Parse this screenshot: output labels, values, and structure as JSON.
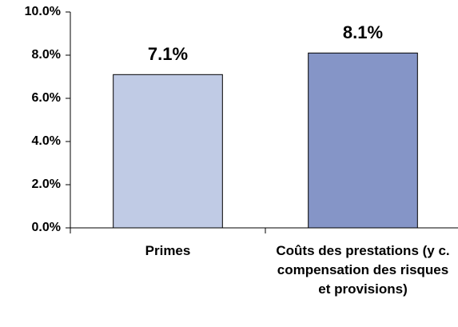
{
  "chart_data": {
    "type": "bar",
    "categories": [
      "Primes",
      "Coûts des prestations (y c. compensation des risques et provisions)"
    ],
    "values": [
      7.1,
      8.1
    ],
    "value_labels": [
      "7.1%",
      "8.1%"
    ],
    "colors": [
      "#c0cbe5",
      "#8595c7"
    ],
    "ylim": [
      0,
      10
    ],
    "yticks": [
      {
        "value": 0,
        "label": "0.0%"
      },
      {
        "value": 2,
        "label": "2.0%"
      },
      {
        "value": 4,
        "label": "4.0%"
      },
      {
        "value": 6,
        "label": "6.0%"
      },
      {
        "value": 8,
        "label": "8.0%"
      },
      {
        "value": 10,
        "label": "10.0%"
      }
    ],
    "grid": false
  }
}
